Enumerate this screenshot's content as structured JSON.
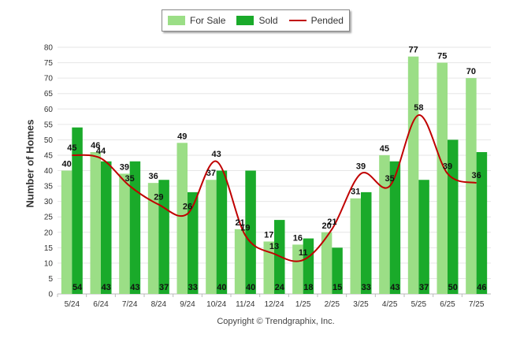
{
  "colors": {
    "for_sale": "#9BDE86",
    "sold": "#1AAA2A",
    "pended": "#C00000"
  },
  "legend": {
    "for_sale": "For Sale",
    "sold": "Sold",
    "pended": "Pended"
  },
  "footer": {
    "copyright": "Copyright © Trendgraphix, Inc."
  },
  "chart_data": {
    "type": "bar",
    "title": "",
    "xlabel": "",
    "ylabel": "Number of Homes",
    "ylim": [
      0,
      80
    ],
    "yticks": [
      0,
      5,
      10,
      15,
      20,
      25,
      30,
      35,
      40,
      45,
      50,
      55,
      60,
      65,
      70,
      75,
      80
    ],
    "grid": true,
    "legend_position": "top-center",
    "categories": [
      "5/24",
      "6/24",
      "7/24",
      "8/24",
      "9/24",
      "10/24",
      "11/24",
      "12/24",
      "1/25",
      "2/25",
      "3/25",
      "4/25",
      "5/25",
      "6/25",
      "7/25"
    ],
    "series": [
      {
        "name": "For Sale",
        "type": "bar",
        "values": [
          40,
          46,
          39,
          36,
          49,
          37,
          21,
          17,
          16,
          20,
          31,
          45,
          77,
          75,
          70
        ]
      },
      {
        "name": "Sold",
        "type": "bar",
        "values": [
          54,
          43,
          43,
          37,
          33,
          40,
          40,
          24,
          18,
          15,
          33,
          43,
          37,
          50,
          46
        ]
      },
      {
        "name": "Pended",
        "type": "line",
        "values": [
          45,
          44,
          35,
          29,
          26,
          43,
          19,
          13,
          11,
          21,
          39,
          35,
          58,
          39,
          36
        ]
      }
    ]
  }
}
